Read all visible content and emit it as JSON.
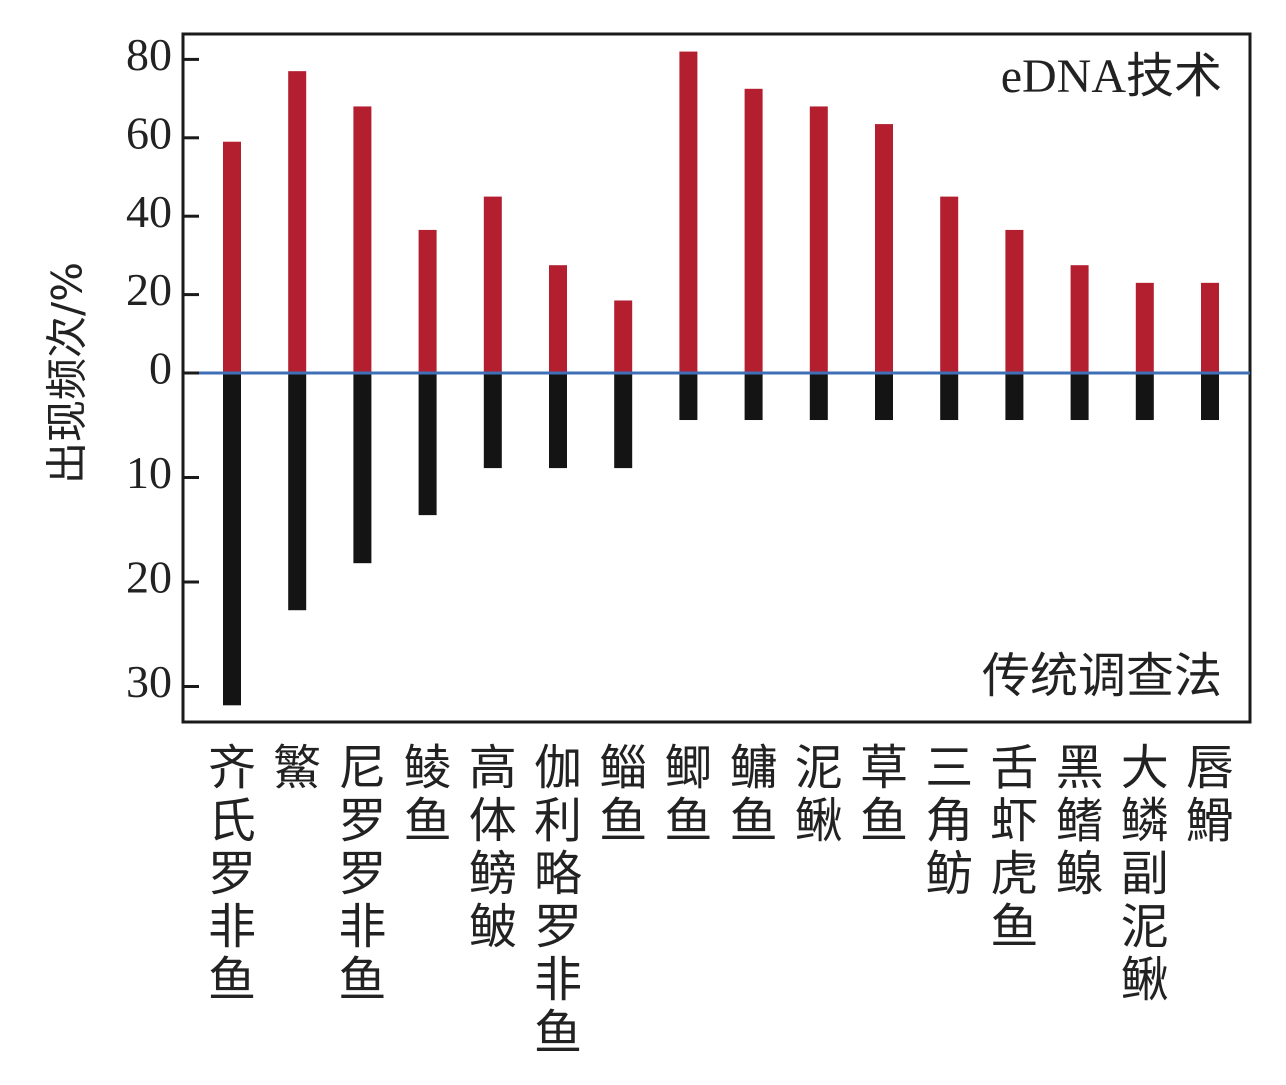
{
  "chart_data": {
    "type": "bar",
    "ylabel": "出现频次/%",
    "annotations": {
      "top": "eDNA技术",
      "bottom": "传统调查法"
    },
    "categories": [
      "齐氏罗非鱼",
      "鰵",
      "尼罗罗非鱼",
      "鲮鱼",
      "高体鳑鲏",
      "伽利略罗非鱼",
      "鲻鱼",
      "鲫鱼",
      "鳙鱼",
      "泥鳅",
      "草鱼",
      "三角鲂",
      "舌虾虎鱼",
      "黑鳍鳈",
      "大鳞副泥鳅",
      "唇䱻"
    ],
    "series": [
      {
        "name": "eDNA技术",
        "values": [
          59,
          77,
          68,
          36.5,
          45,
          27.5,
          18.5,
          82,
          72.5,
          68,
          63.5,
          45,
          36.5,
          27.5,
          23,
          23
        ],
        "ylim": [
          0,
          85
        ]
      },
      {
        "name": "传统调查法",
        "values": [
          31.8,
          22.7,
          18.2,
          13.6,
          9.1,
          9.1,
          9.1,
          4.5,
          4.5,
          4.5,
          4.5,
          4.5,
          4.5,
          4.5,
          4.5,
          4.5
        ],
        "ylim": [
          0,
          33
        ]
      }
    ],
    "yticks_top": [
      "80",
      "60",
      "40",
      "20",
      "0"
    ],
    "yticks_bottom": [
      "10",
      "20",
      "30"
    ],
    "colors": {
      "top": "#b41f30",
      "bottom": "#141414",
      "zero_line": "#3f6fb6",
      "frame": "#1a1a1a"
    },
    "grid": false
  }
}
